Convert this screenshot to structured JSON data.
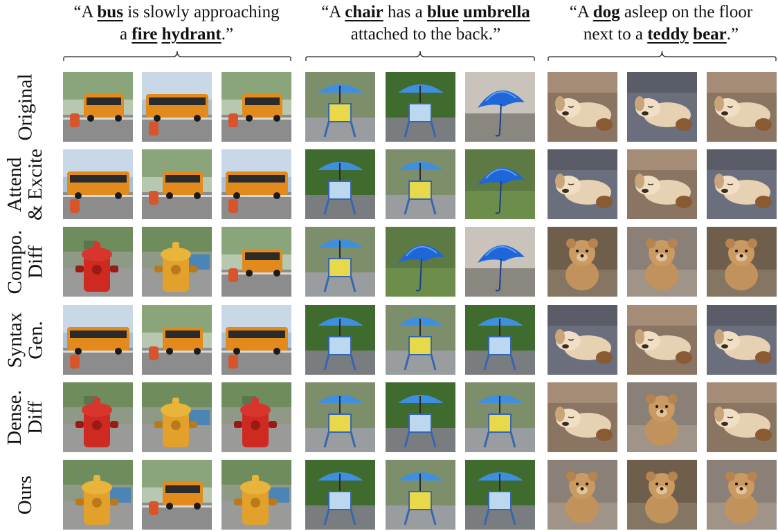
{
  "prompts": [
    {
      "parts": [
        {
          "t": "“A ",
          "b": false
        },
        {
          "t": "bus",
          "b": true
        },
        {
          "t": " is slowly approaching",
          "b": false
        },
        {
          "br": true
        },
        {
          "t": "a ",
          "b": false
        },
        {
          "t": "fire",
          "b": true
        },
        {
          "t": " ",
          "b": false
        },
        {
          "t": "hydrant",
          "b": true
        },
        {
          "t": ".”",
          "b": false
        }
      ]
    },
    {
      "parts": [
        {
          "t": "“A ",
          "b": false
        },
        {
          "t": "chair",
          "b": true
        },
        {
          "t": " has a ",
          "b": false
        },
        {
          "t": "blue",
          "b": true
        },
        {
          "t": " ",
          "b": false
        },
        {
          "t": "umbrella",
          "b": true
        },
        {
          "br": true
        },
        {
          "t": "attached to the back.”",
          "b": false
        }
      ]
    },
    {
      "parts": [
        {
          "t": "“A ",
          "b": false
        },
        {
          "t": "dog",
          "b": true
        },
        {
          "t": " asleep on the floor",
          "b": false
        },
        {
          "br": true
        },
        {
          "t": "next to a ",
          "b": false
        },
        {
          "t": "teddy",
          "b": true
        },
        {
          "t": " ",
          "b": false
        },
        {
          "t": "bear",
          "b": true
        },
        {
          "t": ".”",
          "b": false
        }
      ]
    }
  ],
  "rows": [
    {
      "label_lines": [
        "Original"
      ]
    },
    {
      "label_lines": [
        "Attend",
        "& Excite"
      ]
    },
    {
      "label_lines": [
        "Compo.",
        "Diff"
      ]
    },
    {
      "label_lines": [
        "Syntax",
        "Gen."
      ]
    },
    {
      "label_lines": [
        "Dense.",
        "Diff"
      ]
    },
    {
      "label_lines": [
        "Ours"
      ]
    }
  ],
  "tiles": [
    [
      "bus",
      "bus",
      "bus",
      "chair",
      "chair",
      "umbrella",
      "dog",
      "dog",
      "dog"
    ],
    [
      "bus",
      "bus",
      "bus",
      "chair",
      "chair",
      "umbrella",
      "dog",
      "dog",
      "dog"
    ],
    [
      "hydrant",
      "hydrant",
      "bus",
      "chair",
      "umbrella",
      "umbrella",
      "teddy",
      "teddy",
      "teddy"
    ],
    [
      "bus",
      "bus",
      "bus",
      "chair",
      "chair",
      "chair",
      "dog",
      "dog",
      "dog"
    ],
    [
      "hydrant",
      "hydrant",
      "hydrant",
      "chair",
      "chair",
      "chair",
      "dog",
      "teddy",
      "dog"
    ],
    [
      "hydrant",
      "bus",
      "hydrant",
      "chair",
      "chair",
      "chair",
      "teddy",
      "teddy",
      "teddy"
    ]
  ]
}
